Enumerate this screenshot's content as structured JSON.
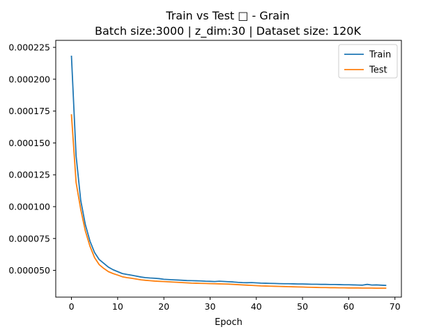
{
  "chart_data": {
    "type": "line",
    "title": "Train vs Test □ - Grain",
    "subtitle": "Batch size:3000 | z_dim:30 | Dataset size: 120K",
    "xlabel": "Epoch",
    "ylabel": "",
    "xlim": [
      -3.4,
      71.4
    ],
    "ylim": [
      2.9e-05,
      0.0002305
    ],
    "xticks": [
      0,
      10,
      20,
      30,
      40,
      50,
      60,
      70
    ],
    "yticks": [
      5e-05,
      7.5e-05,
      0.0001,
      0.000125,
      0.00015,
      0.000175,
      0.0002,
      0.000225
    ],
    "ytick_labels": [
      "0.000050",
      "0.000075",
      "0.000100",
      "0.000125",
      "0.000150",
      "0.000175",
      "0.000200",
      "0.000225"
    ],
    "grid": false,
    "legend_position": "top-right",
    "x": [
      0,
      1,
      2,
      3,
      4,
      5,
      6,
      7,
      8,
      9,
      10,
      11,
      12,
      13,
      14,
      15,
      16,
      17,
      18,
      19,
      20,
      21,
      22,
      23,
      24,
      25,
      26,
      27,
      28,
      29,
      30,
      31,
      32,
      33,
      34,
      35,
      36,
      37,
      38,
      39,
      40,
      41,
      42,
      43,
      44,
      45,
      46,
      47,
      48,
      49,
      50,
      51,
      52,
      53,
      54,
      55,
      56,
      57,
      58,
      59,
      60,
      61,
      62,
      63,
      64,
      65,
      66,
      67,
      68
    ],
    "series": [
      {
        "name": "Train",
        "color": "#1f77b4",
        "values": [
          0.000218,
          0.00014,
          0.000105,
          8.6e-05,
          7.3e-05,
          6.4e-05,
          5.85e-05,
          5.55e-05,
          5.25e-05,
          5.05e-05,
          4.9e-05,
          4.75e-05,
          4.68e-05,
          4.62e-05,
          4.55e-05,
          4.48e-05,
          4.43e-05,
          4.4e-05,
          4.38e-05,
          4.35e-05,
          4.3e-05,
          4.28e-05,
          4.26e-05,
          4.24e-05,
          4.22e-05,
          4.2e-05,
          4.19e-05,
          4.18e-05,
          4.17e-05,
          4.15e-05,
          4.14e-05,
          4.12e-05,
          4.15e-05,
          4.13e-05,
          4.11e-05,
          4.09e-05,
          4.06e-05,
          4.04e-05,
          4.03e-05,
          4.04e-05,
          4.02e-05,
          4e-05,
          3.99e-05,
          3.98e-05,
          3.97e-05,
          3.96e-05,
          3.95e-05,
          3.95e-05,
          3.94e-05,
          3.93e-05,
          3.93e-05,
          3.92e-05,
          3.91e-05,
          3.91e-05,
          3.9e-05,
          3.9e-05,
          3.89e-05,
          3.89e-05,
          3.88e-05,
          3.87e-05,
          3.87e-05,
          3.86e-05,
          3.85e-05,
          3.84e-05,
          3.9e-05,
          3.85e-05,
          3.86e-05,
          3.84e-05,
          3.82e-05
        ]
      },
      {
        "name": "Test",
        "color": "#ff7f0e",
        "values": [
          0.000172,
          0.000119,
          9.8e-05,
          8.1e-05,
          6.9e-05,
          6e-05,
          5.45e-05,
          5.15e-05,
          4.9e-05,
          4.75e-05,
          4.63e-05,
          4.5e-05,
          4.43e-05,
          4.38e-05,
          4.32e-05,
          4.26e-05,
          4.22e-05,
          4.19e-05,
          4.16e-05,
          4.14e-05,
          4.12e-05,
          4.1e-05,
          4.08e-05,
          4.06e-05,
          4.04e-05,
          4.02e-05,
          4e-05,
          3.99e-05,
          3.98e-05,
          3.97e-05,
          3.96e-05,
          3.95e-05,
          3.94e-05,
          3.93e-05,
          3.92e-05,
          3.9e-05,
          3.88e-05,
          3.86e-05,
          3.84e-05,
          3.82e-05,
          3.8e-05,
          3.78e-05,
          3.77e-05,
          3.76e-05,
          3.75e-05,
          3.74e-05,
          3.73e-05,
          3.72e-05,
          3.71e-05,
          3.7e-05,
          3.69e-05,
          3.68e-05,
          3.67e-05,
          3.66e-05,
          3.65e-05,
          3.65e-05,
          3.64e-05,
          3.64e-05,
          3.63e-05,
          3.63e-05,
          3.62e-05,
          3.62e-05,
          3.62e-05,
          3.61e-05,
          3.61e-05,
          3.61e-05,
          3.6e-05,
          3.6e-05,
          3.6e-05
        ]
      }
    ]
  }
}
